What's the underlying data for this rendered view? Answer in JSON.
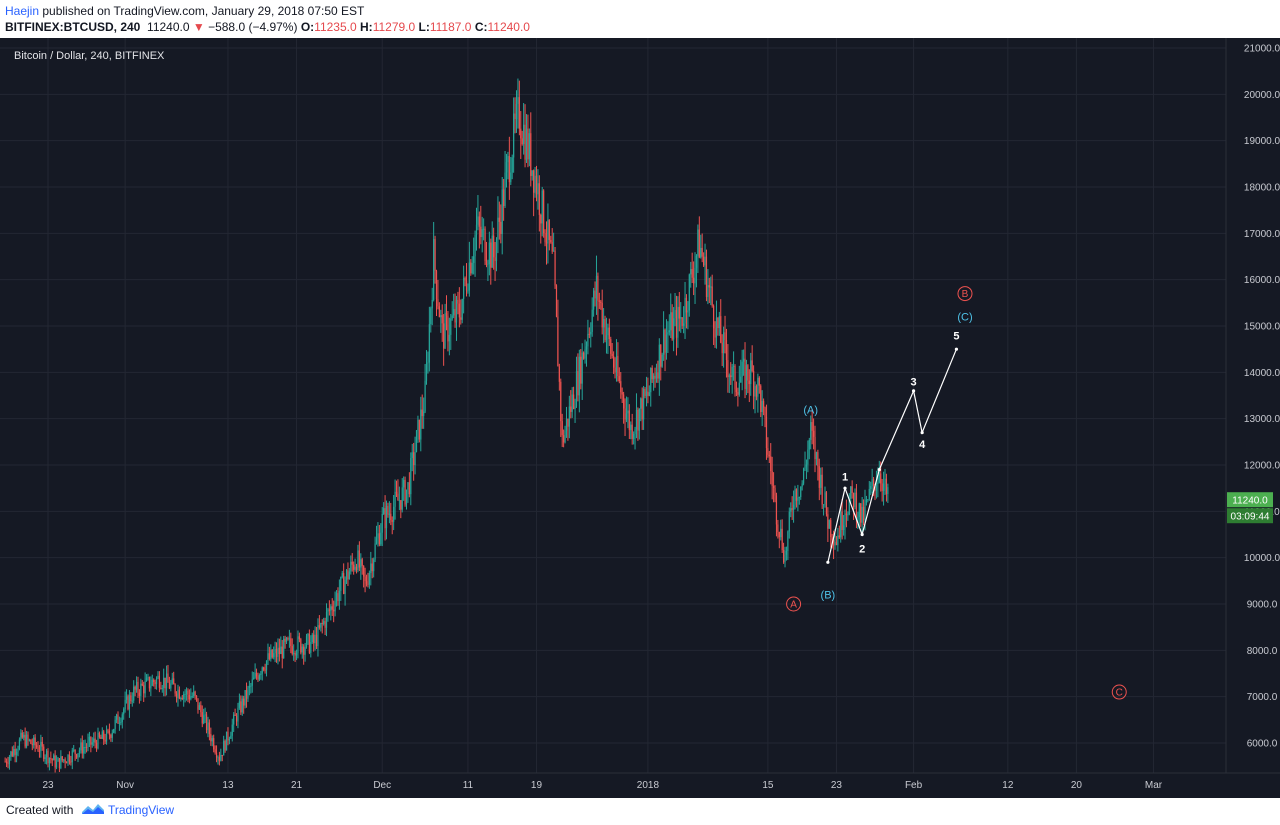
{
  "header": {
    "author": "Haejin",
    "published_text": " published on TradingView.com, January 29, 2018 07:50 EST",
    "symbol": "BITFINEX:BTCUSD, 240",
    "last": "11240.0",
    "change": "−588.0 (−4.97%)",
    "open_label": "O:",
    "open": "11235.0",
    "high_label": "H:",
    "high": "11279.0",
    "low_label": "L:",
    "low": "11187.0",
    "close_label": "C:",
    "close": "11240.0"
  },
  "footer": {
    "created_with": "Created with",
    "brand": "TradingView"
  },
  "colors": {
    "background": "#151924",
    "up_candle": "#26a69a",
    "down_candle": "#ef5350",
    "price_tag": "#4caf50",
    "wave_cyan": "#4fc3e8",
    "wave_red": "#ef5350"
  },
  "chart_data": {
    "type": "candlestick",
    "title": "Bitcoin / Dollar, 240, BITFINEX",
    "price_axis": [
      "21000.0",
      "20000.0",
      "19000.0",
      "18000.0",
      "17000.0",
      "16000.0",
      "15000.0",
      "14000.0",
      "13000.0",
      "12000.0",
      "11000.0",
      "10000.0",
      "9000.0",
      "8000.0",
      "7000.0",
      "6000.0"
    ],
    "ylim": [
      5300,
      21300
    ],
    "time_axis": [
      "23",
      "Nov",
      "13",
      "21",
      "Dec",
      "11",
      "19",
      "2018",
      "15",
      "23",
      "Feb",
      "12",
      "20",
      "Mar"
    ],
    "time_axis_values": [
      "2017-10-23",
      "2017-11-01",
      "2017-11-13",
      "2017-11-21",
      "2017-12-01",
      "2017-12-11",
      "2017-12-19",
      "2018-01-01",
      "2018-01-15",
      "2018-01-23",
      "2018-02-01",
      "2018-02-12",
      "2018-02-20",
      "2018-03-01"
    ],
    "last_price": "11240.0",
    "countdown": "03:09:44",
    "price_path": [
      [
        "2017-10-18",
        5600
      ],
      [
        "2017-10-20",
        6100
      ],
      [
        "2017-10-22",
        5900
      ],
      [
        "2017-10-24",
        5550
      ],
      [
        "2017-10-27",
        5900
      ],
      [
        "2017-10-30",
        6150
      ],
      [
        "2017-11-02",
        7100
      ],
      [
        "2017-11-05",
        7400
      ],
      [
        "2017-11-07",
        7150
      ],
      [
        "2017-11-09",
        7000
      ],
      [
        "2017-11-10",
        6600
      ],
      [
        "2017-11-12",
        5700
      ],
      [
        "2017-11-14",
        6600
      ],
      [
        "2017-11-17",
        7700
      ],
      [
        "2017-11-20",
        8100
      ],
      [
        "2017-11-23",
        8150
      ],
      [
        "2017-11-26",
        9300
      ],
      [
        "2017-11-28",
        10000
      ],
      [
        "2017-11-29",
        9400
      ],
      [
        "2017-12-01",
        10800
      ],
      [
        "2017-12-04",
        11500
      ],
      [
        "2017-12-06",
        13500
      ],
      [
        "2017-12-07",
        16500
      ],
      [
        "2017-12-08",
        14800
      ],
      [
        "2017-12-10",
        15300
      ],
      [
        "2017-12-12",
        17100
      ],
      [
        "2017-12-14",
        16500
      ],
      [
        "2017-12-16",
        18800
      ],
      [
        "2017-12-17",
        19600
      ],
      [
        "2017-12-19",
        18100
      ],
      [
        "2017-12-21",
        16200
      ],
      [
        "2017-12-22",
        12500
      ],
      [
        "2017-12-24",
        14000
      ],
      [
        "2017-12-26",
        15800
      ],
      [
        "2017-12-28",
        14200
      ],
      [
        "2017-12-30",
        12800
      ],
      [
        "2018-01-01",
        13500
      ],
      [
        "2018-01-03",
        14800
      ],
      [
        "2018-01-05",
        15200
      ],
      [
        "2018-01-07",
        16800
      ],
      [
        "2018-01-09",
        15000
      ],
      [
        "2018-01-11",
        13800
      ],
      [
        "2018-01-13",
        14000
      ],
      [
        "2018-01-14",
        13600
      ],
      [
        "2018-01-16",
        11000
      ],
      [
        "2018-01-17",
        10000
      ],
      [
        "2018-01-18",
        11400
      ],
      [
        "2018-01-19",
        11600
      ],
      [
        "2018-01-20",
        12700
      ],
      [
        "2018-01-21",
        11800
      ],
      [
        "2018-01-22",
        10800
      ],
      [
        "2018-01-23",
        10400
      ],
      [
        "2018-01-24",
        11100
      ],
      [
        "2018-01-25",
        11300
      ],
      [
        "2018-01-26",
        10800
      ],
      [
        "2018-01-27",
        11400
      ],
      [
        "2018-01-28",
        11900
      ],
      [
        "2018-01-29",
        11240
      ]
    ],
    "series": [
      {
        "name": "Elliott wave projection",
        "points": [
          [
            "2018-01-22",
            9900
          ],
          [
            "2018-01-24",
            11500
          ],
          [
            "2018-01-26",
            10500
          ],
          [
            "2018-01-28",
            11900
          ],
          [
            "2018-02-01",
            13600
          ],
          [
            "2018-02-02",
            12700
          ],
          [
            "2018-02-06",
            14500
          ]
        ]
      }
    ],
    "annotations": [
      {
        "text": "1",
        "style": "white",
        "x": "2018-01-24",
        "y": 11750
      },
      {
        "text": "2",
        "style": "white",
        "x": "2018-01-26",
        "y": 10200
      },
      {
        "text": "3",
        "style": "white",
        "x": "2018-02-01",
        "y": 13800
      },
      {
        "text": "4",
        "style": "white",
        "x": "2018-02-02",
        "y": 12450
      },
      {
        "text": "5",
        "style": "white",
        "x": "2018-02-06",
        "y": 14800
      },
      {
        "text": "(A)",
        "style": "cyan",
        "x": "2018-01-20",
        "y": 13200
      },
      {
        "text": "(B)",
        "style": "cyan",
        "x": "2018-01-22",
        "y": 9200
      },
      {
        "text": "(C)",
        "style": "cyan",
        "x": "2018-02-07",
        "y": 15200
      },
      {
        "text": "A",
        "style": "red-circle",
        "x": "2018-01-18",
        "y": 9000
      },
      {
        "text": "B",
        "style": "red-circle",
        "x": "2018-02-07",
        "y": 15700
      },
      {
        "text": "C",
        "style": "red-circle",
        "x": "2018-02-25",
        "y": 7100
      }
    ]
  }
}
